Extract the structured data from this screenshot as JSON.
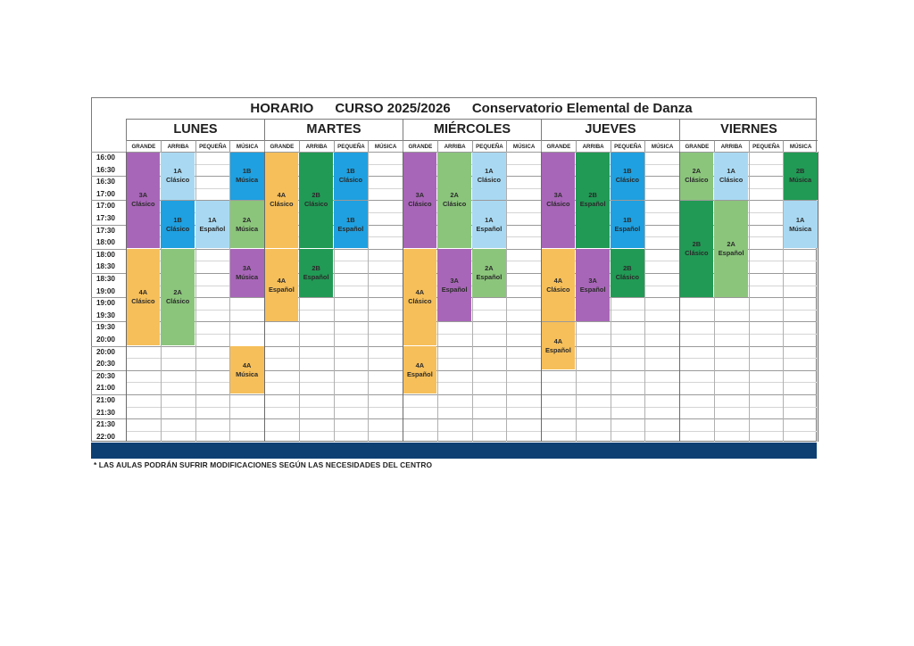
{
  "title": {
    "part1": "HORARIO",
    "part2": "CURSO 2025/2026",
    "part3": "Conservatorio Elemental de Danza"
  },
  "days": [
    "LUNES",
    "MARTES",
    "MIÉRCOLES",
    "JUEVES",
    "VIERNES"
  ],
  "rooms": [
    "GRANDE",
    "ARRIBA",
    "PEQUEÑA",
    "MÚSICA"
  ],
  "times": [
    "16:00",
    "16:30",
    "16:30",
    "17:00",
    "17:00",
    "17:30",
    "17:30",
    "18:00",
    "18:00",
    "18:30",
    "18:30",
    "19:00",
    "19:00",
    "19:30",
    "19:30",
    "20:00",
    "20:00",
    "20:30",
    "20:30",
    "21:00",
    "21:00",
    "21:30",
    "21:30",
    "22:00"
  ],
  "colors": {
    "purple": "#a866b8",
    "lightblue": "#a9d9f2",
    "blue": "#1fa0e0",
    "green": "#8bc57c",
    "darkgreen": "#219a55",
    "orange": "#f6bf5a",
    "footer": "#0d3f73"
  },
  "blocks": [
    {
      "day": 0,
      "room": 0,
      "start": 0,
      "end": 8,
      "color": "purple",
      "group": "3A",
      "style": "Clásico"
    },
    {
      "day": 0,
      "room": 1,
      "start": 0,
      "end": 4,
      "color": "lightblue",
      "group": "1A",
      "style": "Clásico"
    },
    {
      "day": 0,
      "room": 3,
      "start": 0,
      "end": 4,
      "color": "blue",
      "group": "1B",
      "style": "Música"
    },
    {
      "day": 0,
      "room": 1,
      "start": 4,
      "end": 8,
      "color": "blue",
      "group": "1B",
      "style": "Clásico"
    },
    {
      "day": 0,
      "room": 2,
      "start": 4,
      "end": 8,
      "color": "lightblue",
      "group": "1A",
      "style": "Español"
    },
    {
      "day": 0,
      "room": 3,
      "start": 4,
      "end": 8,
      "color": "green",
      "group": "2A",
      "style": "Música"
    },
    {
      "day": 0,
      "room": 0,
      "start": 8,
      "end": 16,
      "color": "orange",
      "group": "4A",
      "style": "Clásico"
    },
    {
      "day": 0,
      "room": 1,
      "start": 8,
      "end": 16,
      "color": "green",
      "group": "2A",
      "style": "Clásico"
    },
    {
      "day": 0,
      "room": 3,
      "start": 8,
      "end": 12,
      "color": "purple",
      "group": "3A",
      "style": "Música"
    },
    {
      "day": 0,
      "room": 3,
      "start": 16,
      "end": 20,
      "color": "orange",
      "group": "4A",
      "style": "Música"
    },
    {
      "day": 1,
      "room": 0,
      "start": 0,
      "end": 8,
      "color": "orange",
      "group": "4A",
      "style": "Clásico"
    },
    {
      "day": 1,
      "room": 1,
      "start": 0,
      "end": 8,
      "color": "darkgreen",
      "group": "2B",
      "style": "Clásico"
    },
    {
      "day": 1,
      "room": 2,
      "start": 0,
      "end": 4,
      "color": "blue",
      "group": "1B",
      "style": "Clásico"
    },
    {
      "day": 1,
      "room": 2,
      "start": 4,
      "end": 8,
      "color": "blue",
      "group": "1B",
      "style": "Español"
    },
    {
      "day": 1,
      "room": 0,
      "start": 8,
      "end": 14,
      "color": "orange",
      "group": "4A",
      "style": "Español"
    },
    {
      "day": 1,
      "room": 1,
      "start": 8,
      "end": 12,
      "color": "darkgreen",
      "group": "2B",
      "style": "Español"
    },
    {
      "day": 2,
      "room": 0,
      "start": 0,
      "end": 8,
      "color": "purple",
      "group": "3A",
      "style": "Clásico"
    },
    {
      "day": 2,
      "room": 1,
      "start": 0,
      "end": 8,
      "color": "green",
      "group": "2A",
      "style": "Clásico"
    },
    {
      "day": 2,
      "room": 2,
      "start": 0,
      "end": 4,
      "color": "lightblue",
      "group": "1A",
      "style": "Clásico"
    },
    {
      "day": 2,
      "room": 2,
      "start": 4,
      "end": 8,
      "color": "lightblue",
      "group": "1A",
      "style": "Español"
    },
    {
      "day": 2,
      "room": 0,
      "start": 8,
      "end": 16,
      "color": "orange",
      "group": "4A",
      "style": "Clásico"
    },
    {
      "day": 2,
      "room": 1,
      "start": 8,
      "end": 14,
      "color": "purple",
      "group": "3A",
      "style": "Español"
    },
    {
      "day": 2,
      "room": 2,
      "start": 8,
      "end": 12,
      "color": "green",
      "group": "2A",
      "style": "Español"
    },
    {
      "day": 2,
      "room": 0,
      "start": 16,
      "end": 20,
      "color": "orange",
      "group": "4A",
      "style": "Español"
    },
    {
      "day": 3,
      "room": 0,
      "start": 0,
      "end": 8,
      "color": "purple",
      "group": "3A",
      "style": "Clásico"
    },
    {
      "day": 3,
      "room": 1,
      "start": 0,
      "end": 8,
      "color": "darkgreen",
      "group": "2B",
      "style": "Español"
    },
    {
      "day": 3,
      "room": 2,
      "start": 0,
      "end": 4,
      "color": "blue",
      "group": "1B",
      "style": "Clásico"
    },
    {
      "day": 3,
      "room": 2,
      "start": 4,
      "end": 8,
      "color": "blue",
      "group": "1B",
      "style": "Español"
    },
    {
      "day": 3,
      "room": 0,
      "start": 8,
      "end": 14,
      "color": "orange",
      "group": "4A",
      "style": "Clásico"
    },
    {
      "day": 3,
      "room": 1,
      "start": 8,
      "end": 14,
      "color": "purple",
      "group": "3A",
      "style": "Español"
    },
    {
      "day": 3,
      "room": 2,
      "start": 8,
      "end": 12,
      "color": "darkgreen",
      "group": "2B",
      "style": "Clásico"
    },
    {
      "day": 3,
      "room": 0,
      "start": 14,
      "end": 18,
      "color": "orange",
      "group": "4A",
      "style": "Español"
    },
    {
      "day": 4,
      "room": 0,
      "start": 0,
      "end": 4,
      "color": "green",
      "group": "2A",
      "style": "Clásico"
    },
    {
      "day": 4,
      "room": 1,
      "start": 0,
      "end": 4,
      "color": "lightblue",
      "group": "1A",
      "style": "Clásico"
    },
    {
      "day": 4,
      "room": 3,
      "start": 0,
      "end": 4,
      "color": "darkgreen",
      "group": "2B",
      "style": "Música"
    },
    {
      "day": 4,
      "room": 3,
      "start": 4,
      "end": 8,
      "color": "lightblue",
      "group": "1A",
      "style": "Música"
    },
    {
      "day": 4,
      "room": 0,
      "start": 4,
      "end": 12,
      "color": "darkgreen",
      "group": "2B",
      "style": "Clásico"
    },
    {
      "day": 4,
      "room": 1,
      "start": 4,
      "end": 12,
      "color": "green",
      "group": "2A",
      "style": "Español"
    }
  ],
  "footer_note": "* LAS AULAS PODRÁN SUFRIR MODIFICACIONES SEGÚN LAS NECESIDADES DEL CENTRO"
}
